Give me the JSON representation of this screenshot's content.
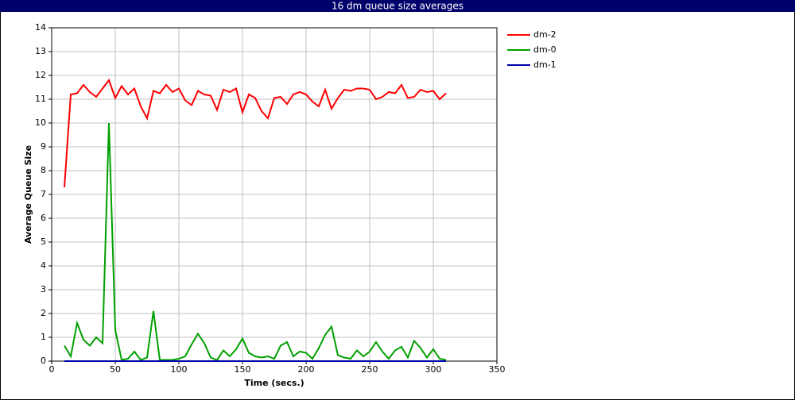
{
  "chart_data": {
    "type": "line",
    "title": "16 dm queue size averages",
    "x_label": "Time (secs.)",
    "y_label": "Average Queue Size",
    "x": [
      10,
      15,
      20,
      25,
      30,
      35,
      40,
      45,
      50,
      55,
      60,
      65,
      70,
      75,
      80,
      85,
      90,
      95,
      100,
      105,
      110,
      115,
      120,
      125,
      130,
      135,
      140,
      145,
      150,
      155,
      160,
      165,
      170,
      175,
      180,
      185,
      190,
      195,
      200,
      205,
      210,
      215,
      220,
      225,
      230,
      235,
      240,
      245,
      250,
      255,
      260,
      265,
      270,
      275,
      280,
      285,
      290,
      295,
      300,
      305,
      310
    ],
    "series": [
      {
        "name": "dm-2",
        "color": "#ff0000",
        "values": [
          7.3,
          11.2,
          11.25,
          11.6,
          11.3,
          11.1,
          11.45,
          11.8,
          11.05,
          11.55,
          11.2,
          11.45,
          10.7,
          10.2,
          11.35,
          11.25,
          11.6,
          11.3,
          11.45,
          10.95,
          10.75,
          11.35,
          11.2,
          11.15,
          10.55,
          11.4,
          11.3,
          11.45,
          10.45,
          11.2,
          11.05,
          10.5,
          10.2,
          11.05,
          11.1,
          10.8,
          11.2,
          11.3,
          11.2,
          10.9,
          10.7,
          11.4,
          10.6,
          11.05,
          11.4,
          11.35,
          11.45,
          11.45,
          11.4,
          11.0,
          11.1,
          11.3,
          11.25,
          11.6,
          11.05,
          11.1,
          11.4,
          11.3,
          11.35,
          11.0,
          11.25
        ]
      },
      {
        "name": "dm-0",
        "color": "#00a000",
        "values": [
          0.65,
          0.2,
          1.6,
          0.9,
          0.65,
          1.0,
          0.75,
          10.0,
          1.3,
          0.05,
          0.1,
          0.4,
          0.05,
          0.15,
          2.1,
          0.05,
          0.05,
          0.05,
          0.1,
          0.2,
          0.7,
          1.15,
          0.75,
          0.15,
          0.05,
          0.45,
          0.2,
          0.5,
          0.95,
          0.35,
          0.2,
          0.15,
          0.2,
          0.1,
          0.65,
          0.8,
          0.2,
          0.4,
          0.35,
          0.1,
          0.55,
          1.1,
          1.45,
          0.25,
          0.15,
          0.1,
          0.45,
          0.2,
          0.4,
          0.8,
          0.4,
          0.1,
          0.45,
          0.6,
          0.15,
          0.85,
          0.55,
          0.15,
          0.5,
          0.1,
          0.05
        ]
      },
      {
        "name": "dm-1",
        "color": "#0000b0",
        "values": [
          0,
          0,
          0,
          0,
          0,
          0,
          0,
          0,
          0,
          0,
          0,
          0,
          0,
          0,
          0,
          0,
          0,
          0,
          0,
          0,
          0,
          0,
          0,
          0,
          0,
          0,
          0,
          0,
          0,
          0,
          0,
          0,
          0,
          0,
          0,
          0,
          0,
          0,
          0,
          0,
          0,
          0,
          0,
          0,
          0,
          0,
          0,
          0,
          0,
          0,
          0,
          0,
          0,
          0,
          0,
          0,
          0,
          0,
          0,
          0,
          0
        ]
      }
    ],
    "xlim": [
      0,
      350
    ],
    "xticks": [
      0,
      50,
      100,
      150,
      200,
      250,
      300,
      350
    ],
    "ylim": [
      0,
      14
    ],
    "yticks": [
      0,
      1,
      2,
      3,
      4,
      5,
      6,
      7,
      8,
      9,
      10,
      11,
      12,
      13,
      14
    ],
    "grid": true
  }
}
